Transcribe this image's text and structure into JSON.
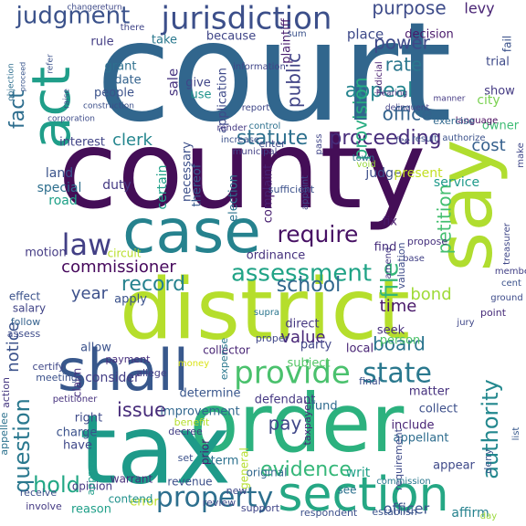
{
  "words": [
    {
      "text": "court",
      "color": "#31668d"
    },
    {
      "text": "county",
      "color": "#440e57"
    },
    {
      "text": "district",
      "color": "#b5de2c"
    },
    {
      "text": "order",
      "color": "#2cb17e"
    },
    {
      "text": "tax",
      "color": "#1e9a89"
    },
    {
      "text": "case",
      "color": "#26828e"
    },
    {
      "text": "shall",
      "color": "#38588c"
    },
    {
      "text": "say",
      "color": "#b0dd2f"
    },
    {
      "text": "act",
      "color": "#1f9e89"
    },
    {
      "text": "section",
      "color": "#25a784"
    },
    {
      "text": "jurisdiction",
      "color": "#3c4f8a"
    },
    {
      "text": "provide",
      "color": "#4ac16d"
    },
    {
      "text": "law",
      "color": "#423f85"
    },
    {
      "text": "property",
      "color": "#2d6f8e"
    },
    {
      "text": "state",
      "color": "#2a788e"
    },
    {
      "text": "judgment",
      "color": "#3b528b"
    },
    {
      "text": "assessment",
      "color": "#20a386"
    },
    {
      "text": "require",
      "color": "#471164"
    },
    {
      "text": "file",
      "color": "#34b679"
    },
    {
      "text": "fact",
      "color": "#2e6e8e"
    },
    {
      "text": "question",
      "color": "#2a788e"
    },
    {
      "text": "authority",
      "color": "#23888e"
    },
    {
      "text": "proceeding",
      "color": "#472d7b"
    },
    {
      "text": "evidence",
      "color": "#35b779"
    },
    {
      "text": "appeal",
      "color": "#25858e"
    },
    {
      "text": "commissioner",
      "color": "#46085c"
    },
    {
      "text": "record",
      "color": "#26828e"
    },
    {
      "text": "statute",
      "color": "#2d708e"
    },
    {
      "text": "school",
      "color": "#31678e"
    },
    {
      "text": "petition",
      "color": "#44bf70"
    },
    {
      "text": "power",
      "color": "#3e4989"
    },
    {
      "text": "purpose",
      "color": "#3e4c8a"
    },
    {
      "text": "rate",
      "color": "#2a778e"
    },
    {
      "text": "office",
      "color": "#33638d"
    },
    {
      "text": "public",
      "color": "#414487"
    },
    {
      "text": "provision",
      "color": "#27ad81"
    },
    {
      "text": "issue",
      "color": "#472c7a"
    },
    {
      "text": "notice",
      "color": "#3b528b"
    },
    {
      "text": "board",
      "color": "#2b758e"
    },
    {
      "text": "value",
      "color": "#482677"
    },
    {
      "text": "pay",
      "color": "#3f4788"
    },
    {
      "text": "hold",
      "color": "#22a785"
    },
    {
      "text": "year",
      "color": "#3c508b"
    },
    {
      "text": "clerk",
      "color": "#24868e"
    },
    {
      "text": "cost",
      "color": "#35608d"
    },
    {
      "text": "time",
      "color": "#481769"
    },
    {
      "text": "bond",
      "color": "#a0da39"
    },
    {
      "text": "levy",
      "color": "#482374"
    },
    {
      "text": "officer",
      "color": "#3a548c"
    },
    {
      "text": "writ",
      "color": "#1fa187"
    },
    {
      "text": "affirm",
      "color": "#26828e"
    },
    {
      "text": "see",
      "color": "#2d718e"
    },
    {
      "text": "sale",
      "color": "#46337f"
    },
    {
      "text": "city",
      "color": "#7ad151"
    },
    {
      "text": "service",
      "color": "#1f9a8a"
    },
    {
      "text": "certain",
      "color": "#1fa088"
    },
    {
      "text": "duty",
      "color": "#443983"
    },
    {
      "text": "land",
      "color": "#3a538b"
    },
    {
      "text": "special",
      "color": "#2e6f8e"
    },
    {
      "text": "road",
      "color": "#1fa188"
    },
    {
      "text": "consider",
      "color": "#433e85"
    },
    {
      "text": "judge",
      "color": "#3d4e8a"
    },
    {
      "text": "present",
      "color": "#c2df23"
    },
    {
      "text": "place",
      "color": "#3e4a89"
    },
    {
      "text": "decision",
      "color": "#48186a"
    },
    {
      "text": "trial",
      "color": "#3e4a89"
    },
    {
      "text": "show",
      "color": "#443a83"
    },
    {
      "text": "owner",
      "color": "#3dbc74"
    },
    {
      "text": "take",
      "color": "#2a788e"
    },
    {
      "text": "because",
      "color": "#404688"
    },
    {
      "text": "rule",
      "color": "#433d84"
    },
    {
      "text": "grant",
      "color": "#2d708e"
    },
    {
      "text": "date",
      "color": "#33628d"
    },
    {
      "text": "give",
      "color": "#404588"
    },
    {
      "text": "use",
      "color": "#1f948c"
    },
    {
      "text": "people",
      "color": "#3b528b"
    },
    {
      "text": "interest",
      "color": "#414487"
    },
    {
      "text": "necessary",
      "color": "#3c4f8a"
    },
    {
      "text": "thereof",
      "color": "#37598c"
    },
    {
      "text": "election",
      "color": "#2c738e"
    },
    {
      "text": "complaint",
      "color": "#482071"
    },
    {
      "text": "plaintiff",
      "color": "#481b6d"
    },
    {
      "text": "application",
      "color": "#3e4989"
    },
    {
      "text": "enter",
      "color": "#3f4788"
    },
    {
      "text": "increase",
      "color": "#3b518b"
    },
    {
      "text": "fix",
      "color": "#481a6c"
    },
    {
      "text": "find",
      "color": "#472f7d"
    },
    {
      "text": "ordinance",
      "color": "#46327e"
    },
    {
      "text": "motion",
      "color": "#443b84"
    },
    {
      "text": "circuit",
      "color": "#b8de29"
    },
    {
      "text": "supra",
      "color": "#2a768e"
    },
    {
      "text": "apply",
      "color": "#3b528b"
    },
    {
      "text": "direct",
      "color": "#453781"
    },
    {
      "text": "party",
      "color": "#404588"
    },
    {
      "text": "proper",
      "color": "#3f4788"
    },
    {
      "text": "local",
      "color": "#482475"
    },
    {
      "text": "seek",
      "color": "#472e7c"
    },
    {
      "text": "person",
      "color": "#4ec36b"
    },
    {
      "text": "subject",
      "color": "#55c667"
    },
    {
      "text": "allow",
      "color": "#3b528b"
    },
    {
      "text": "matter",
      "color": "#46317e"
    },
    {
      "text": "collect",
      "color": "#3c4f8a"
    },
    {
      "text": "include",
      "color": "#482475"
    },
    {
      "text": "defendant",
      "color": "#453882"
    },
    {
      "text": "determine",
      "color": "#39568c"
    },
    {
      "text": "improvement",
      "color": "#31678e"
    },
    {
      "text": "fund",
      "color": "#2f6b8e"
    },
    {
      "text": "right",
      "color": "#3e4a89"
    },
    {
      "text": "charge",
      "color": "#3b528b"
    },
    {
      "text": "have",
      "color": "#3f4889"
    },
    {
      "text": "term",
      "color": "#2c718e"
    },
    {
      "text": "appear",
      "color": "#3e4989"
    },
    {
      "text": "appellant",
      "color": "#2e6d8e"
    },
    {
      "text": "reason",
      "color": "#1f9f88"
    },
    {
      "text": "error",
      "color": "#bddf26"
    },
    {
      "text": "opinion",
      "color": "#453882"
    },
    {
      "text": "salary",
      "color": "#414487"
    },
    {
      "text": "effect",
      "color": "#3b528b"
    },
    {
      "text": "follow",
      "color": "#34618d"
    },
    {
      "text": "assess",
      "color": "#3e4c8a"
    },
    {
      "text": "certify",
      "color": "#3f4788"
    },
    {
      "text": "claim",
      "color": "#46317e"
    },
    {
      "text": "petitioner",
      "color": "#46327e"
    },
    {
      "text": "payment",
      "color": "#472f7d"
    },
    {
      "text": "allege",
      "color": "#433e85"
    },
    {
      "text": "collector",
      "color": "#482475"
    },
    {
      "text": "meeting",
      "color": "#3b518b"
    },
    {
      "text": "money",
      "color": "#dae319"
    },
    {
      "text": "expense",
      "color": "#2a788e"
    },
    {
      "text": "taxpayer",
      "color": "#482878"
    },
    {
      "text": "final",
      "color": "#3c508b"
    },
    {
      "text": "revenue",
      "color": "#3c4f8a"
    },
    {
      "text": "prior",
      "color": "#481d6f"
    },
    {
      "text": "set",
      "color": "#3b518b"
    },
    {
      "text": "general",
      "color": "#b5de2c"
    },
    {
      "text": "original",
      "color": "#31678e"
    },
    {
      "text": "benefit",
      "color": "#b5de2c"
    },
    {
      "text": "warrant",
      "color": "#472e7c"
    },
    {
      "text": "contend",
      "color": "#21918c"
    },
    {
      "text": "decree",
      "color": "#433e85"
    },
    {
      "text": "new",
      "color": "#3f4889"
    },
    {
      "text": "review",
      "color": "#3e4c8a"
    },
    {
      "text": "support",
      "color": "#404588"
    },
    {
      "text": "respondent",
      "color": "#3c4f8a"
    },
    {
      "text": "establish",
      "color": "#3b528b"
    },
    {
      "text": "receive",
      "color": "#3c4f8a"
    },
    {
      "text": "involve",
      "color": "#443a83"
    },
    {
      "text": "approve",
      "color": "#1f9e89"
    },
    {
      "text": "action",
      "color": "#453781"
    },
    {
      "text": "appellee",
      "color": "#2c728e"
    },
    {
      "text": "requirement",
      "color": "#3e4a89"
    },
    {
      "text": "deny",
      "color": "#38588c"
    },
    {
      "text": "commission",
      "color": "#2a788e"
    },
    {
      "text": "list",
      "color": "#37598c"
    },
    {
      "text": "make",
      "color": "#3f4788"
    },
    {
      "text": "treasurer",
      "color": "#3f4788"
    },
    {
      "text": "member",
      "color": "#424086"
    },
    {
      "text": "cent",
      "color": "#3b528b"
    },
    {
      "text": "ground",
      "color": "#3e4c8a"
    },
    {
      "text": "point",
      "color": "#472c7a"
    },
    {
      "text": "jury",
      "color": "#3f4788"
    },
    {
      "text": "propose",
      "color": "#46317e"
    },
    {
      "text": "base",
      "color": "#424186"
    },
    {
      "text": "amend",
      "color": "#443983"
    },
    {
      "text": "valuation",
      "color": "#3e4c8a"
    },
    {
      "text": "language",
      "color": "#46085c"
    },
    {
      "text": "authorize",
      "color": "#3b528b"
    },
    {
      "text": "exercise",
      "color": "#31688e"
    },
    {
      "text": "result",
      "color": "#3b518b"
    },
    {
      "text": "fee",
      "color": "#414487"
    },
    {
      "text": "town",
      "color": "#2e6e8e"
    },
    {
      "text": "sufficient",
      "color": "#3b518b"
    },
    {
      "text": "appoint",
      "color": "#3f4788"
    },
    {
      "text": "pass",
      "color": "#404588"
    },
    {
      "text": "void",
      "color": "#98d83e"
    },
    {
      "text": "delinquent",
      "color": "#424186"
    },
    {
      "text": "manner",
      "color": "#443983"
    },
    {
      "text": "judicial",
      "color": "#481f70"
    },
    {
      "text": "hearing",
      "color": "#46327e"
    },
    {
      "text": "information",
      "color": "#404688"
    },
    {
      "text": "construction",
      "color": "#3c4f8a"
    },
    {
      "text": "report",
      "color": "#3f4788"
    },
    {
      "text": "corporation",
      "color": "#3e4c8a"
    },
    {
      "text": "render",
      "color": "#443983"
    },
    {
      "text": "control",
      "color": "#2d708e"
    },
    {
      "text": "sum",
      "color": "#3b528b"
    },
    {
      "text": "there",
      "color": "#404588"
    },
    {
      "text": "change",
      "color": "#3e4c8a"
    },
    {
      "text": "return",
      "color": "#3f4788"
    },
    {
      "text": "refer",
      "color": "#3b528b"
    },
    {
      "text": "raise",
      "color": "#3e4989"
    },
    {
      "text": "objection",
      "color": "#2e6e8e"
    },
    {
      "text": "proceed",
      "color": "#39568c"
    },
    {
      "text": "municipal",
      "color": "#424086"
    },
    {
      "text": "fail",
      "color": "#3b528b"
    },
    {
      "text": "day",
      "color": "#9bd93c"
    },
    {
      "text": "tell",
      "color": "#3e4c8a"
    }
  ]
}
